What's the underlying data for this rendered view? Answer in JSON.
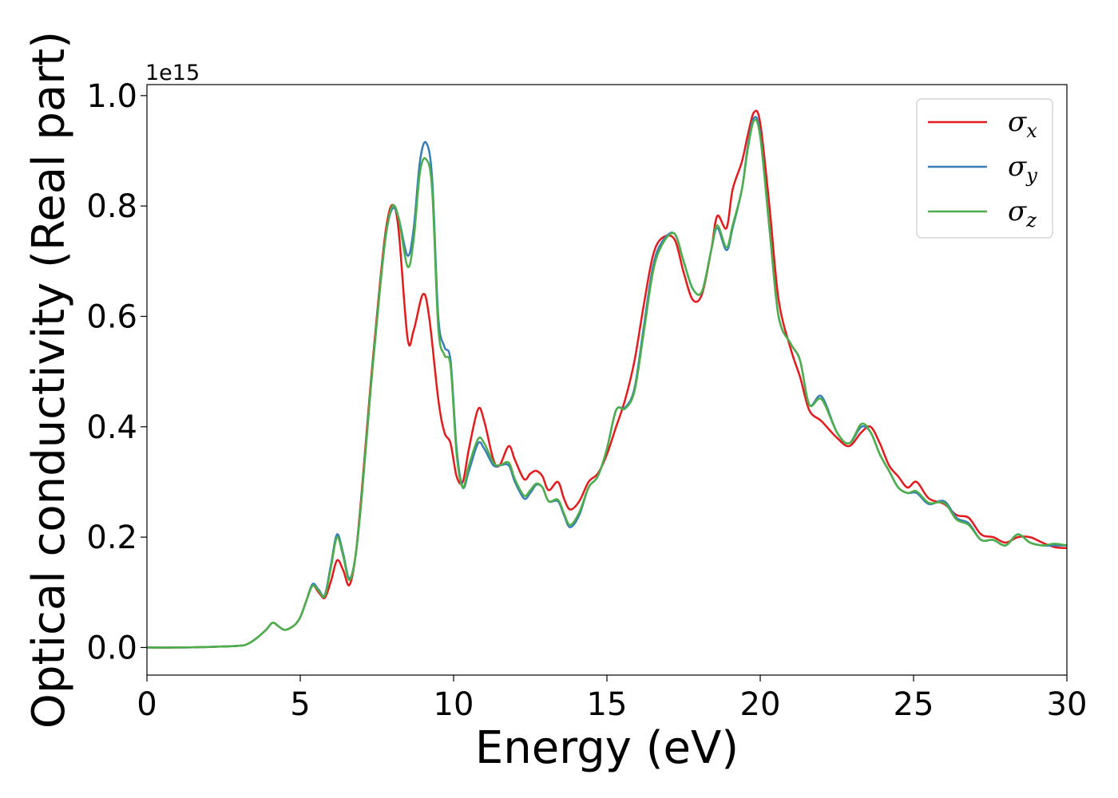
{
  "chart_data": {
    "type": "line",
    "title": "",
    "xlabel": "Energy (eV)",
    "ylabel": "Optical conductivity (Real part)",
    "y_offset_label": "1e15",
    "xlim": [
      0,
      30
    ],
    "ylim": [
      -0.05,
      1.02
    ],
    "xticks": [
      0,
      5,
      10,
      15,
      20,
      25,
      30
    ],
    "yticks": [
      0.0,
      0.2,
      0.4,
      0.6,
      0.8,
      1.0
    ],
    "xtick_labels": [
      "0",
      "5",
      "10",
      "15",
      "20",
      "25",
      "30"
    ],
    "ytick_labels": [
      "0.0",
      "0.2",
      "0.4",
      "0.6",
      "0.8",
      "1.0"
    ],
    "grid": false,
    "legend_position": "top-right",
    "series": [
      {
        "name": "σ",
        "subscript": "x",
        "color": "#e41a1c",
        "points": [
          [
            0,
            0
          ],
          [
            1,
            0
          ],
          [
            2,
            0.001
          ],
          [
            3,
            0.003
          ],
          [
            3.3,
            0.007
          ],
          [
            3.6,
            0.018
          ],
          [
            3.9,
            0.033
          ],
          [
            4.1,
            0.045
          ],
          [
            4.3,
            0.038
          ],
          [
            4.5,
            0.032
          ],
          [
            4.8,
            0.04
          ],
          [
            5.0,
            0.055
          ],
          [
            5.2,
            0.085
          ],
          [
            5.4,
            0.112
          ],
          [
            5.6,
            0.1
          ],
          [
            5.8,
            0.09
          ],
          [
            6.0,
            0.12
          ],
          [
            6.2,
            0.158
          ],
          [
            6.4,
            0.14
          ],
          [
            6.6,
            0.113
          ],
          [
            6.8,
            0.165
          ],
          [
            7.0,
            0.28
          ],
          [
            7.3,
            0.48
          ],
          [
            7.6,
            0.66
          ],
          [
            7.8,
            0.76
          ],
          [
            8.0,
            0.802
          ],
          [
            8.2,
            0.76
          ],
          [
            8.5,
            0.56
          ],
          [
            8.7,
            0.575
          ],
          [
            9.0,
            0.64
          ],
          [
            9.2,
            0.6
          ],
          [
            9.5,
            0.45
          ],
          [
            9.7,
            0.39
          ],
          [
            9.9,
            0.37
          ],
          [
            10.1,
            0.31
          ],
          [
            10.3,
            0.3
          ],
          [
            10.5,
            0.36
          ],
          [
            10.8,
            0.432
          ],
          [
            11.0,
            0.41
          ],
          [
            11.3,
            0.34
          ],
          [
            11.5,
            0.33
          ],
          [
            11.8,
            0.365
          ],
          [
            12.0,
            0.34
          ],
          [
            12.3,
            0.305
          ],
          [
            12.5,
            0.315
          ],
          [
            12.7,
            0.32
          ],
          [
            12.9,
            0.31
          ],
          [
            13.1,
            0.285
          ],
          [
            13.4,
            0.3
          ],
          [
            13.6,
            0.27
          ],
          [
            13.8,
            0.25
          ],
          [
            14.1,
            0.265
          ],
          [
            14.4,
            0.3
          ],
          [
            14.7,
            0.315
          ],
          [
            15.0,
            0.35
          ],
          [
            15.3,
            0.4
          ],
          [
            15.6,
            0.45
          ],
          [
            15.9,
            0.52
          ],
          [
            16.2,
            0.62
          ],
          [
            16.5,
            0.71
          ],
          [
            16.8,
            0.742
          ],
          [
            17.2,
            0.74
          ],
          [
            17.5,
            0.68
          ],
          [
            17.8,
            0.63
          ],
          [
            18.1,
            0.64
          ],
          [
            18.4,
            0.72
          ],
          [
            18.6,
            0.782
          ],
          [
            18.9,
            0.76
          ],
          [
            19.1,
            0.83
          ],
          [
            19.4,
            0.88
          ],
          [
            19.6,
            0.93
          ],
          [
            19.8,
            0.97
          ],
          [
            20.0,
            0.95
          ],
          [
            20.3,
            0.8
          ],
          [
            20.6,
            0.63
          ],
          [
            21.0,
            0.54
          ],
          [
            21.3,
            0.49
          ],
          [
            21.6,
            0.43
          ],
          [
            22.0,
            0.41
          ],
          [
            22.5,
            0.38
          ],
          [
            22.9,
            0.365
          ],
          [
            23.3,
            0.39
          ],
          [
            23.6,
            0.4
          ],
          [
            23.9,
            0.37
          ],
          [
            24.2,
            0.33
          ],
          [
            24.5,
            0.31
          ],
          [
            24.8,
            0.29
          ],
          [
            25.1,
            0.3
          ],
          [
            25.5,
            0.27
          ],
          [
            26.0,
            0.26
          ],
          [
            26.4,
            0.24
          ],
          [
            26.8,
            0.235
          ],
          [
            27.2,
            0.205
          ],
          [
            27.6,
            0.2
          ],
          [
            28.0,
            0.19
          ],
          [
            28.4,
            0.2
          ],
          [
            28.8,
            0.2
          ],
          [
            29.2,
            0.19
          ],
          [
            29.6,
            0.182
          ],
          [
            30.0,
            0.18
          ]
        ]
      },
      {
        "name": "σ",
        "subscript": "y",
        "color": "#377eb8",
        "points": [
          [
            0,
            0
          ],
          [
            1,
            0
          ],
          [
            2,
            0.001
          ],
          [
            3,
            0.003
          ],
          [
            3.3,
            0.007
          ],
          [
            3.6,
            0.018
          ],
          [
            3.9,
            0.033
          ],
          [
            4.1,
            0.045
          ],
          [
            4.3,
            0.038
          ],
          [
            4.5,
            0.032
          ],
          [
            4.8,
            0.04
          ],
          [
            5.0,
            0.055
          ],
          [
            5.2,
            0.085
          ],
          [
            5.4,
            0.115
          ],
          [
            5.6,
            0.105
          ],
          [
            5.8,
            0.095
          ],
          [
            6.0,
            0.15
          ],
          [
            6.2,
            0.205
          ],
          [
            6.4,
            0.17
          ],
          [
            6.6,
            0.125
          ],
          [
            6.8,
            0.165
          ],
          [
            7.0,
            0.27
          ],
          [
            7.3,
            0.47
          ],
          [
            7.6,
            0.65
          ],
          [
            7.8,
            0.75
          ],
          [
            8.0,
            0.795
          ],
          [
            8.2,
            0.78
          ],
          [
            8.5,
            0.71
          ],
          [
            8.7,
            0.76
          ],
          [
            8.9,
            0.88
          ],
          [
            9.1,
            0.915
          ],
          [
            9.3,
            0.85
          ],
          [
            9.5,
            0.6
          ],
          [
            9.7,
            0.545
          ],
          [
            9.9,
            0.52
          ],
          [
            10.1,
            0.36
          ],
          [
            10.3,
            0.29
          ],
          [
            10.5,
            0.32
          ],
          [
            10.8,
            0.37
          ],
          [
            11.0,
            0.36
          ],
          [
            11.3,
            0.33
          ],
          [
            11.5,
            0.33
          ],
          [
            11.8,
            0.33
          ],
          [
            12.0,
            0.3
          ],
          [
            12.3,
            0.27
          ],
          [
            12.5,
            0.28
          ],
          [
            12.7,
            0.295
          ],
          [
            12.9,
            0.29
          ],
          [
            13.1,
            0.265
          ],
          [
            13.4,
            0.265
          ],
          [
            13.6,
            0.24
          ],
          [
            13.8,
            0.218
          ],
          [
            14.1,
            0.24
          ],
          [
            14.4,
            0.29
          ],
          [
            14.7,
            0.31
          ],
          [
            15.0,
            0.36
          ],
          [
            15.3,
            0.43
          ],
          [
            15.6,
            0.435
          ],
          [
            15.9,
            0.47
          ],
          [
            16.2,
            0.58
          ],
          [
            16.5,
            0.69
          ],
          [
            16.8,
            0.735
          ],
          [
            17.2,
            0.75
          ],
          [
            17.5,
            0.7
          ],
          [
            17.8,
            0.65
          ],
          [
            18.1,
            0.645
          ],
          [
            18.4,
            0.72
          ],
          [
            18.6,
            0.76
          ],
          [
            18.9,
            0.72
          ],
          [
            19.1,
            0.76
          ],
          [
            19.4,
            0.83
          ],
          [
            19.6,
            0.91
          ],
          [
            19.8,
            0.96
          ],
          [
            20.0,
            0.93
          ],
          [
            20.3,
            0.76
          ],
          [
            20.6,
            0.6
          ],
          [
            21.0,
            0.55
          ],
          [
            21.3,
            0.52
          ],
          [
            21.6,
            0.44
          ],
          [
            22.0,
            0.455
          ],
          [
            22.5,
            0.39
          ],
          [
            22.9,
            0.37
          ],
          [
            23.3,
            0.4
          ],
          [
            23.6,
            0.39
          ],
          [
            23.9,
            0.35
          ],
          [
            24.2,
            0.32
          ],
          [
            24.5,
            0.29
          ],
          [
            24.8,
            0.28
          ],
          [
            25.1,
            0.28
          ],
          [
            25.5,
            0.26
          ],
          [
            26.0,
            0.265
          ],
          [
            26.4,
            0.235
          ],
          [
            26.8,
            0.225
          ],
          [
            27.2,
            0.195
          ],
          [
            27.6,
            0.195
          ],
          [
            28.0,
            0.185
          ],
          [
            28.4,
            0.205
          ],
          [
            28.8,
            0.19
          ],
          [
            29.2,
            0.185
          ],
          [
            29.6,
            0.185
          ],
          [
            30.0,
            0.185
          ]
        ]
      },
      {
        "name": "σ",
        "subscript": "z",
        "color": "#4daf4a",
        "points": [
          [
            0,
            0
          ],
          [
            1,
            0
          ],
          [
            2,
            0.001
          ],
          [
            3,
            0.003
          ],
          [
            3.3,
            0.007
          ],
          [
            3.6,
            0.018
          ],
          [
            3.9,
            0.033
          ],
          [
            4.1,
            0.045
          ],
          [
            4.3,
            0.038
          ],
          [
            4.5,
            0.032
          ],
          [
            4.8,
            0.04
          ],
          [
            5.0,
            0.055
          ],
          [
            5.2,
            0.085
          ],
          [
            5.4,
            0.112
          ],
          [
            5.6,
            0.103
          ],
          [
            5.8,
            0.093
          ],
          [
            6.0,
            0.145
          ],
          [
            6.2,
            0.2
          ],
          [
            6.4,
            0.165
          ],
          [
            6.6,
            0.122
          ],
          [
            6.8,
            0.165
          ],
          [
            7.0,
            0.27
          ],
          [
            7.3,
            0.47
          ],
          [
            7.6,
            0.65
          ],
          [
            7.8,
            0.75
          ],
          [
            8.0,
            0.8
          ],
          [
            8.2,
            0.78
          ],
          [
            8.5,
            0.69
          ],
          [
            8.7,
            0.74
          ],
          [
            8.9,
            0.86
          ],
          [
            9.1,
            0.885
          ],
          [
            9.3,
            0.83
          ],
          [
            9.5,
            0.58
          ],
          [
            9.7,
            0.53
          ],
          [
            9.9,
            0.51
          ],
          [
            10.1,
            0.35
          ],
          [
            10.3,
            0.29
          ],
          [
            10.5,
            0.33
          ],
          [
            10.8,
            0.378
          ],
          [
            11.0,
            0.37
          ],
          [
            11.3,
            0.335
          ],
          [
            11.5,
            0.33
          ],
          [
            11.8,
            0.335
          ],
          [
            12.0,
            0.305
          ],
          [
            12.3,
            0.275
          ],
          [
            12.5,
            0.285
          ],
          [
            12.7,
            0.297
          ],
          [
            12.9,
            0.29
          ],
          [
            13.1,
            0.265
          ],
          [
            13.4,
            0.268
          ],
          [
            13.6,
            0.243
          ],
          [
            13.8,
            0.222
          ],
          [
            14.1,
            0.245
          ],
          [
            14.4,
            0.29
          ],
          [
            14.7,
            0.31
          ],
          [
            15.0,
            0.36
          ],
          [
            15.3,
            0.43
          ],
          [
            15.6,
            0.433
          ],
          [
            15.9,
            0.465
          ],
          [
            16.2,
            0.57
          ],
          [
            16.5,
            0.68
          ],
          [
            16.8,
            0.73
          ],
          [
            17.2,
            0.75
          ],
          [
            17.5,
            0.7
          ],
          [
            17.8,
            0.65
          ],
          [
            18.1,
            0.645
          ],
          [
            18.4,
            0.72
          ],
          [
            18.6,
            0.765
          ],
          [
            18.9,
            0.725
          ],
          [
            19.1,
            0.765
          ],
          [
            19.4,
            0.83
          ],
          [
            19.6,
            0.905
          ],
          [
            19.8,
            0.955
          ],
          [
            20.0,
            0.925
          ],
          [
            20.3,
            0.76
          ],
          [
            20.6,
            0.6
          ],
          [
            21.0,
            0.55
          ],
          [
            21.3,
            0.52
          ],
          [
            21.6,
            0.44
          ],
          [
            22.0,
            0.45
          ],
          [
            22.5,
            0.39
          ],
          [
            22.9,
            0.37
          ],
          [
            23.3,
            0.405
          ],
          [
            23.6,
            0.39
          ],
          [
            23.9,
            0.35
          ],
          [
            24.2,
            0.32
          ],
          [
            24.5,
            0.29
          ],
          [
            24.8,
            0.28
          ],
          [
            25.1,
            0.283
          ],
          [
            25.5,
            0.262
          ],
          [
            26.0,
            0.262
          ],
          [
            26.4,
            0.232
          ],
          [
            26.8,
            0.222
          ],
          [
            27.2,
            0.195
          ],
          [
            27.6,
            0.195
          ],
          [
            28.0,
            0.185
          ],
          [
            28.4,
            0.205
          ],
          [
            28.8,
            0.19
          ],
          [
            29.2,
            0.185
          ],
          [
            29.6,
            0.188
          ],
          [
            30.0,
            0.185
          ]
        ]
      }
    ]
  }
}
